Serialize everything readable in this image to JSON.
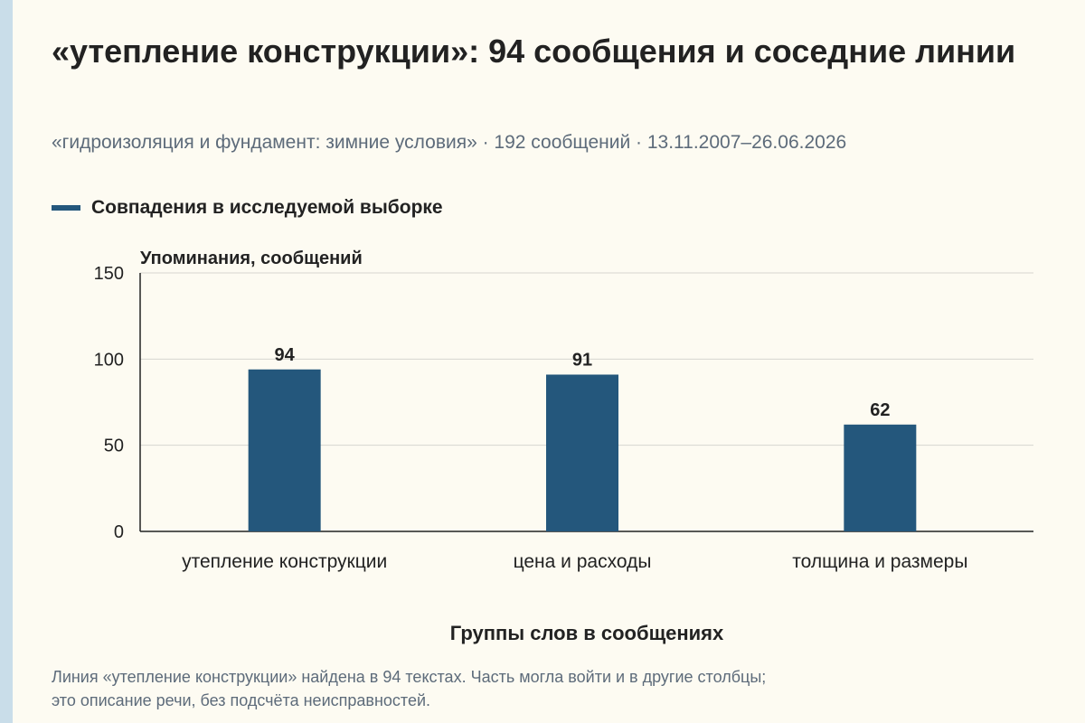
{
  "colors": {
    "bar": "#24577c",
    "grid": "#d6d6d0",
    "axis": "#222222",
    "background": "#fdfbf2",
    "muted": "#5d6b7a",
    "accent_strip": "#c9dde9"
  },
  "header": {
    "title": "«утепление конструкции»: 94 сообщения и соседние линии",
    "subtitle": "«гидроизоляция и фундамент: зимние условия» · 192 сообщений · 13.11.2007–26.06.2026"
  },
  "legend": {
    "label": "Совпадения в исследуемой выборке"
  },
  "footnote": {
    "line1": "Линия «утепление конструкции» найдена в 94 текстах. Часть могла войти и в другие столбцы;",
    "line2": "это описание речи, без подсчёта неисправностей."
  },
  "chart_data": {
    "type": "bar",
    "categories": [
      "утепление конструкции",
      "цена и расходы",
      "толщина и размеры"
    ],
    "series": [
      {
        "name": "Совпадения в исследуемой выборке",
        "values": [
          94,
          91,
          62
        ]
      }
    ],
    "ylabel": "Упоминания, сообщений",
    "xlabel": "Группы слов в сообщениях",
    "ylim": [
      0,
      150
    ],
    "yticks": [
      0,
      50,
      100,
      150
    ],
    "grid": true,
    "legend_position": "top-left"
  }
}
